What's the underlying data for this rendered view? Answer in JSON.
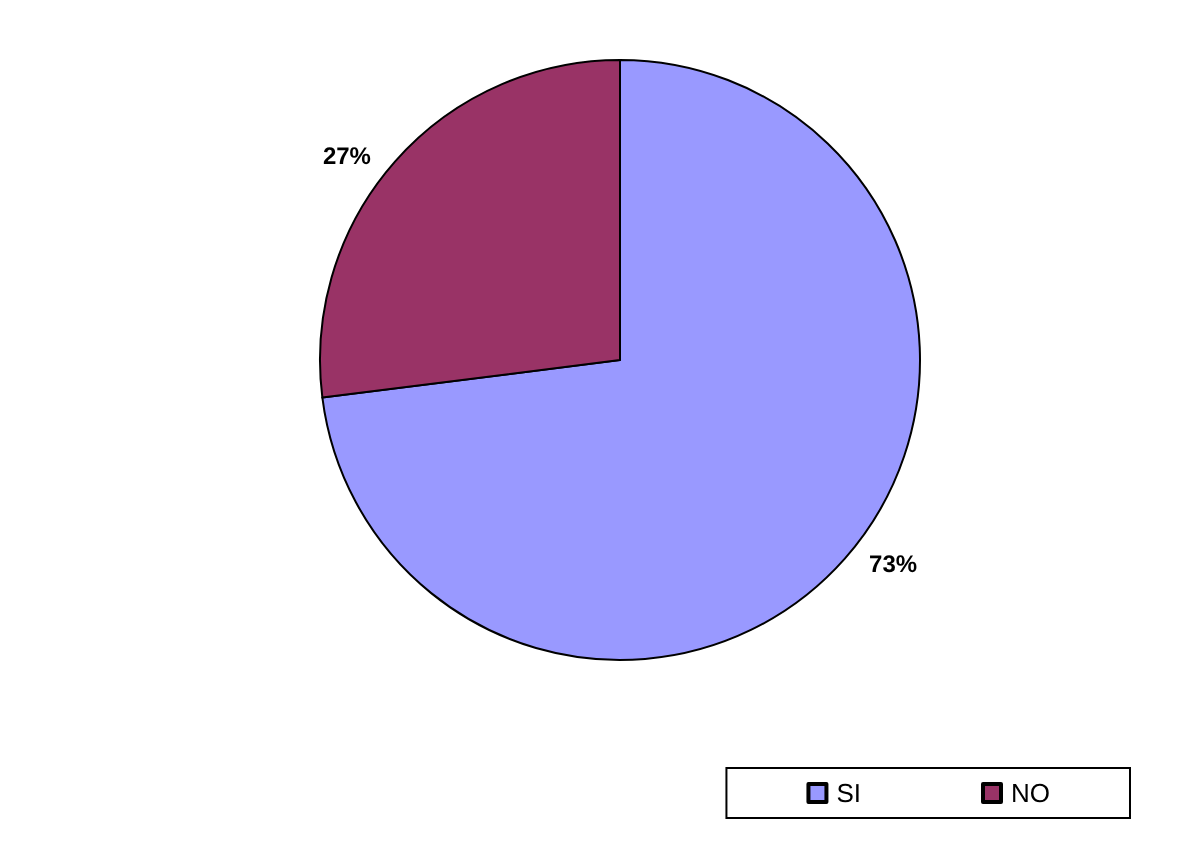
{
  "chart_data": {
    "type": "pie",
    "categories": [
      "SI",
      "NO"
    ],
    "values": [
      73,
      27
    ],
    "colors": [
      "#9999ff",
      "#993366"
    ],
    "value_labels": [
      "73%",
      "27%"
    ],
    "legend": "bottom right"
  }
}
